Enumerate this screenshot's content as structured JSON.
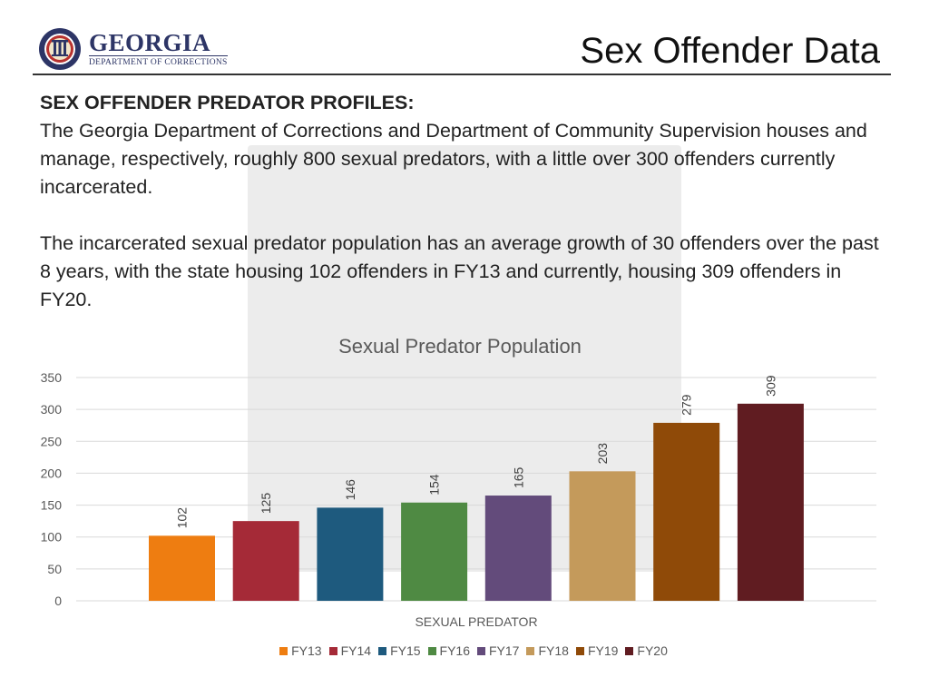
{
  "header": {
    "logo_name": "GEORGIA",
    "logo_sub": "DEPARTMENT OF CORRECTIONS",
    "title": "Sex Offender Data"
  },
  "body": {
    "heading": "SEX OFFENDER PREDATOR PROFILES:",
    "paragraph1": "The Georgia Department of Corrections and Department of Community Supervision houses and manage, respectively, roughly 800 sexual predators, with a little over 300 offenders currently incarcerated.",
    "paragraph2": "The incarcerated sexual predator population has an average growth of 30 offenders over the past 8 years, with the state housing 102 offenders in FY13 and currently, housing 309 offenders in FY20."
  },
  "chart_data": {
    "type": "bar",
    "title": "Sexual Predator Population",
    "xlabel": "SEXUAL PREDATOR",
    "ylabel": "",
    "ylim": [
      0,
      350
    ],
    "yticks": [
      0,
      50,
      100,
      150,
      200,
      250,
      300,
      350
    ],
    "grid": true,
    "legend_position": "bottom",
    "categories": [
      "SEXUAL PREDATOR"
    ],
    "series": [
      {
        "name": "FY13",
        "values": [
          102
        ],
        "color": "#ee7d11"
      },
      {
        "name": "FY14",
        "values": [
          125
        ],
        "color": "#a52a37"
      },
      {
        "name": "FY15",
        "values": [
          146
        ],
        "color": "#1e5a7e"
      },
      {
        "name": "FY16",
        "values": [
          154
        ],
        "color": "#4f8a43"
      },
      {
        "name": "FY17",
        "values": [
          165
        ],
        "color": "#634b7b"
      },
      {
        "name": "FY18",
        "values": [
          203
        ],
        "color": "#c49a5b"
      },
      {
        "name": "FY19",
        "values": [
          279
        ],
        "color": "#8f4a08"
      },
      {
        "name": "FY20",
        "values": [
          309
        ],
        "color": "#601c21"
      }
    ]
  }
}
